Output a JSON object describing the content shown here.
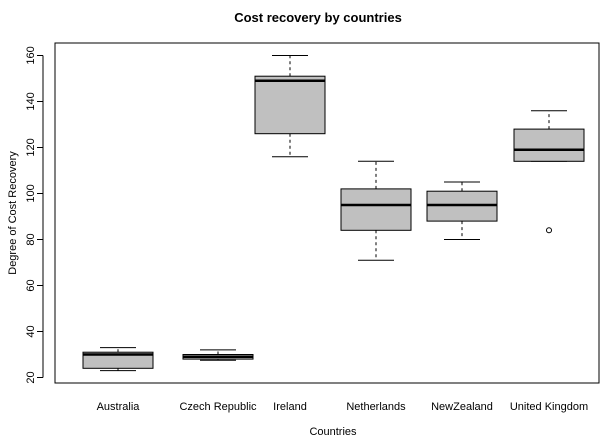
{
  "chart_data": {
    "type": "boxplot",
    "title": "Cost recovery by countries",
    "xlabel": "Countries",
    "ylabel": "Degree of Cost Recovery",
    "ylim": [
      18,
      165
    ],
    "yticks": [
      20,
      40,
      60,
      80,
      100,
      120,
      140,
      160
    ],
    "grid": false,
    "colors": {
      "box_fill": "#c0c0c0",
      "stroke": "#000000"
    },
    "categories": [
      "Australia",
      "Czech Republic",
      "Ireland",
      "Netherlands",
      "NewZealand",
      "United Kingdom"
    ],
    "boxes": [
      {
        "category": "Australia",
        "min": 23,
        "q1": 24,
        "median": 30,
        "q3": 31,
        "max": 33,
        "outliers": []
      },
      {
        "category": "Czech Republic",
        "min": 27.5,
        "q1": 28,
        "median": 29,
        "q3": 30,
        "max": 32,
        "outliers": []
      },
      {
        "category": "Ireland",
        "min": 116,
        "q1": 126,
        "median": 149,
        "q3": 151,
        "max": 160,
        "outliers": []
      },
      {
        "category": "Netherlands",
        "min": 71,
        "q1": 84,
        "median": 95,
        "q3": 102,
        "max": 114,
        "outliers": []
      },
      {
        "category": "NewZealand",
        "min": 80,
        "q1": 88,
        "median": 95,
        "q3": 101,
        "max": 105,
        "outliers": []
      },
      {
        "category": "United Kingdom",
        "min": 114,
        "q1": 114,
        "median": 119,
        "q3": 128,
        "max": 136,
        "outliers": [
          84
        ]
      }
    ]
  }
}
